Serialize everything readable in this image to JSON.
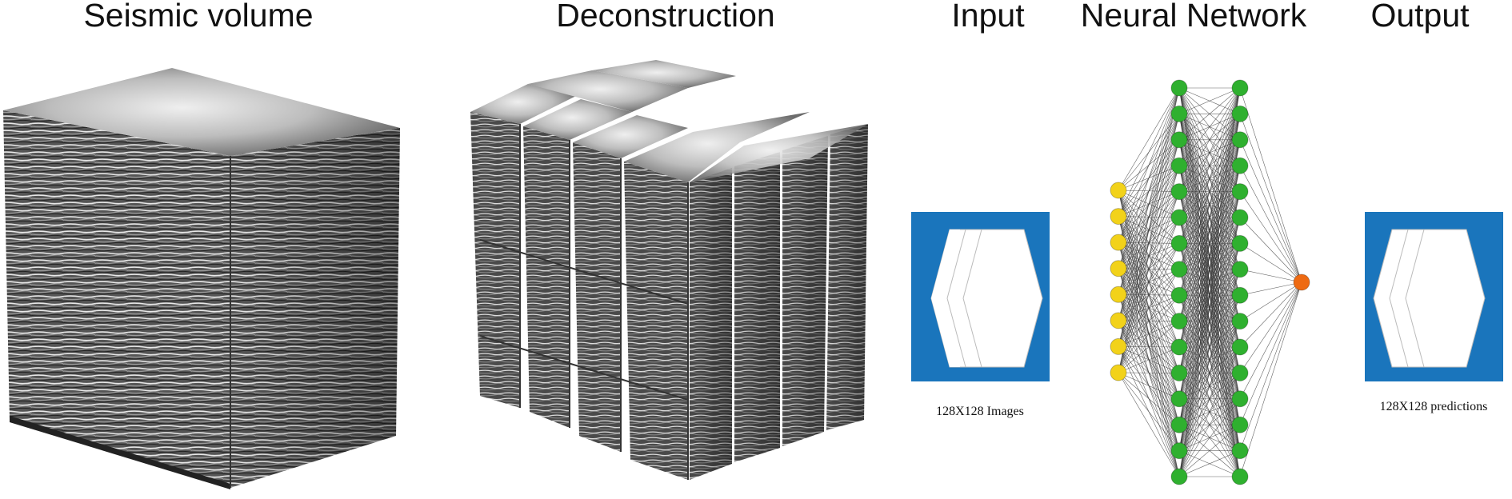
{
  "titles": {
    "seismic_volume": "Seismic volume",
    "deconstruction": "Deconstruction",
    "input": "Input",
    "neural_network": "Neural Network",
    "output": "Output"
  },
  "captions": {
    "input": "128X128 Images",
    "output": "128X128 predictions"
  },
  "network": {
    "input_nodes": 8,
    "hidden1_nodes": 16,
    "hidden2_nodes": 16,
    "output_nodes": 1
  },
  "colors": {
    "input_node": "#f2d21a",
    "hidden_node": "#2fb02f",
    "output_node": "#ee6a12",
    "image_panel": "#1a75bc",
    "edge": "#333333"
  },
  "icons": {
    "input_image": "stacked-hexagon-slices-icon",
    "output_image": "stacked-hexagon-slices-icon"
  }
}
